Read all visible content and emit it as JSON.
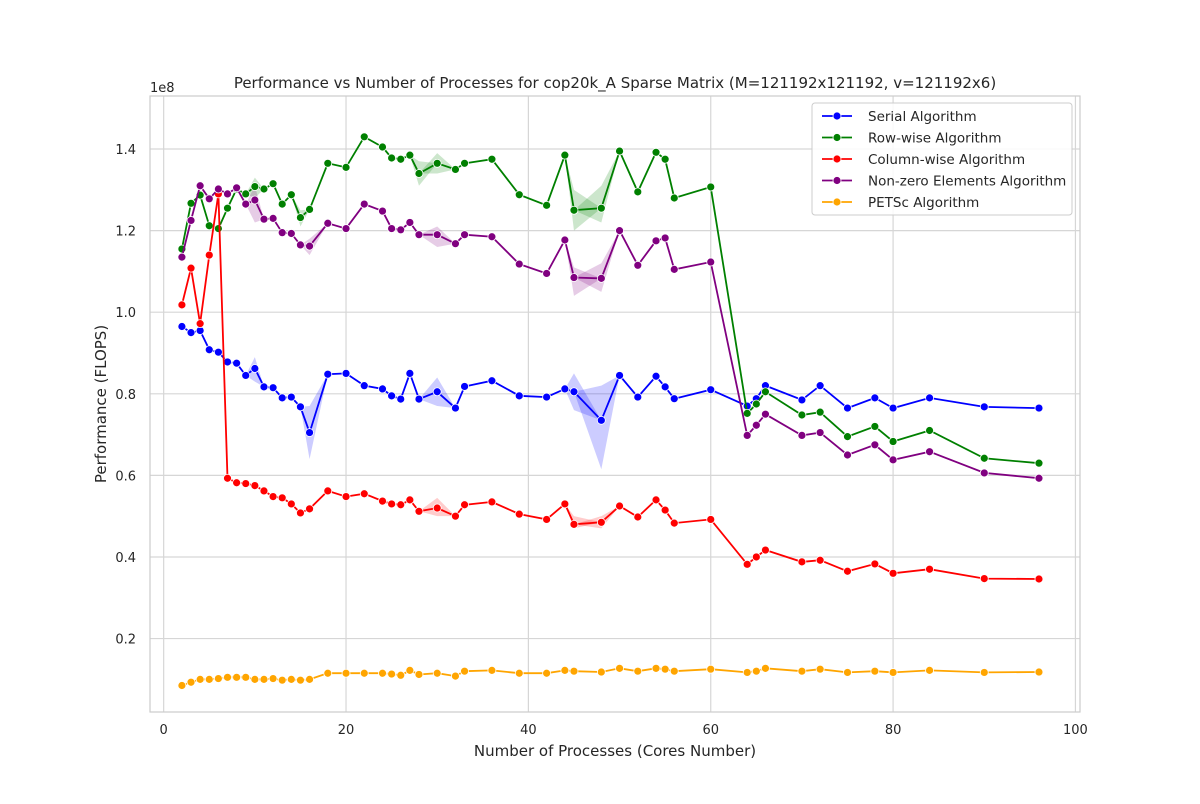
{
  "chart_data": {
    "type": "line",
    "title": "Performance vs Number of Processes for cop20k_A Sparse Matrix (M=121192x121192, v=121192x6)",
    "xlabel": "Number of Processes (Cores Number)",
    "ylabel": "Performance (FLOPS)",
    "y_multiplier_label": "1e8",
    "xlim": [
      -1.5,
      100.5
    ],
    "ylim": [
      0.02,
      1.53
    ],
    "x_ticks": [
      0,
      20,
      40,
      60,
      80,
      100
    ],
    "x_tick_labels": [
      "0",
      "20",
      "40",
      "60",
      "80",
      "100"
    ],
    "y_ticks": [
      0.2,
      0.4,
      0.6,
      0.8,
      1.0,
      1.2,
      1.4
    ],
    "y_tick_labels": [
      "0.2",
      "0.4",
      "0.6",
      "0.8",
      "1.0",
      "1.2",
      "1.4"
    ],
    "grid": true,
    "legend_position": "top-right",
    "x": [
      2,
      3,
      4,
      5,
      6,
      7,
      8,
      9,
      10,
      11,
      12,
      13,
      14,
      15,
      16,
      18,
      20,
      22,
      24,
      25,
      26,
      27,
      28,
      30,
      32,
      33,
      36,
      39,
      42,
      44,
      45,
      48,
      50,
      52,
      54,
      55,
      56,
      60,
      64,
      65,
      66,
      70,
      72,
      75,
      78,
      80,
      84,
      90,
      96
    ],
    "series": [
      {
        "name": "Serial Algorithm",
        "color": "#0000ff",
        "values": [
          0.965,
          0.95,
          0.955,
          0.908,
          0.902,
          0.878,
          0.875,
          0.845,
          0.862,
          0.817,
          0.815,
          0.79,
          0.792,
          0.768,
          0.705,
          0.848,
          0.85,
          0.82,
          0.812,
          0.795,
          0.787,
          0.85,
          0.787,
          0.805,
          0.765,
          0.818,
          0.832,
          0.795,
          0.792,
          0.812,
          0.805,
          0.735,
          0.845,
          0.792,
          0.843,
          0.817,
          0.788,
          0.81,
          0.77,
          0.788,
          0.82,
          0.785,
          0.82,
          0.765,
          0.79,
          0.765,
          0.79,
          0.768,
          0.765
        ],
        "band": [
          {
            "x": 10,
            "lo": 0.83,
            "hi": 0.89
          },
          {
            "x": 16,
            "lo": 0.64,
            "hi": 0.77
          },
          {
            "x": 30,
            "lo": 0.77,
            "hi": 0.84
          },
          {
            "x": 45,
            "lo": 0.76,
            "hi": 0.85
          },
          {
            "x": 48,
            "lo": 0.615,
            "hi": 0.82
          }
        ]
      },
      {
        "name": "Row-wise Algorithm",
        "color": "#008000",
        "values": [
          1.155,
          1.267,
          1.287,
          1.212,
          1.205,
          1.255,
          1.302,
          1.29,
          1.308,
          1.302,
          1.315,
          1.265,
          1.288,
          1.232,
          1.252,
          1.365,
          1.355,
          1.43,
          1.405,
          1.378,
          1.375,
          1.385,
          1.34,
          1.365,
          1.35,
          1.365,
          1.375,
          1.288,
          1.262,
          1.385,
          1.25,
          1.255,
          1.395,
          1.295,
          1.392,
          1.375,
          1.28,
          1.307,
          0.752,
          0.775,
          0.805,
          0.748,
          0.755,
          0.695,
          0.72,
          0.683,
          0.71,
          0.642,
          0.63
        ],
        "band": [
          {
            "x": 10,
            "lo": 1.28,
            "hi": 1.33
          },
          {
            "x": 15,
            "lo": 1.21,
            "hi": 1.25
          },
          {
            "x": 28,
            "lo": 1.31,
            "hi": 1.37
          },
          {
            "x": 30,
            "lo": 1.34,
            "hi": 1.39
          },
          {
            "x": 45,
            "lo": 1.2,
            "hi": 1.3
          },
          {
            "x": 48,
            "lo": 1.22,
            "hi": 1.31
          }
        ]
      },
      {
        "name": "Column-wise Algorithm",
        "color": "#ff0000",
        "values": [
          1.018,
          1.108,
          0.972,
          1.14,
          1.29,
          0.593,
          0.582,
          0.58,
          0.575,
          0.562,
          0.548,
          0.545,
          0.53,
          0.508,
          0.518,
          0.562,
          0.548,
          0.555,
          0.537,
          0.53,
          0.528,
          0.54,
          0.512,
          0.52,
          0.5,
          0.528,
          0.535,
          0.505,
          0.492,
          0.53,
          0.48,
          0.485,
          0.525,
          0.498,
          0.54,
          0.515,
          0.483,
          0.492,
          0.382,
          0.4,
          0.417,
          0.388,
          0.392,
          0.365,
          0.383,
          0.36,
          0.37,
          0.347,
          0.346
        ],
        "band": [
          {
            "x": 30,
            "lo": 0.5,
            "hi": 0.545
          },
          {
            "x": 45,
            "lo": 0.47,
            "hi": 0.5
          },
          {
            "x": 48,
            "lo": 0.47,
            "hi": 0.5
          }
        ]
      },
      {
        "name": "Non-zero Elements Algorithm",
        "color": "#800080",
        "values": [
          1.135,
          1.225,
          1.31,
          1.278,
          1.302,
          1.29,
          1.305,
          1.265,
          1.275,
          1.228,
          1.23,
          1.195,
          1.193,
          1.165,
          1.162,
          1.218,
          1.205,
          1.265,
          1.248,
          1.205,
          1.202,
          1.22,
          1.19,
          1.19,
          1.168,
          1.19,
          1.185,
          1.118,
          1.095,
          1.177,
          1.085,
          1.083,
          1.2,
          1.115,
          1.175,
          1.182,
          1.105,
          1.123,
          0.698,
          0.723,
          0.75,
          0.698,
          0.705,
          0.65,
          0.675,
          0.638,
          0.658,
          0.606,
          0.593
        ],
        "band": [
          {
            "x": 10,
            "lo": 1.22,
            "hi": 1.31
          },
          {
            "x": 16,
            "lo": 1.14,
            "hi": 1.18
          },
          {
            "x": 30,
            "lo": 1.16,
            "hi": 1.21
          },
          {
            "x": 45,
            "lo": 1.04,
            "hi": 1.11
          },
          {
            "x": 48,
            "lo": 1.05,
            "hi": 1.12
          }
        ]
      },
      {
        "name": "PETSc Algorithm",
        "color": "#ffa500",
        "values": [
          0.085,
          0.093,
          0.1,
          0.1,
          0.102,
          0.105,
          0.105,
          0.105,
          0.1,
          0.1,
          0.102,
          0.098,
          0.1,
          0.098,
          0.1,
          0.115,
          0.115,
          0.115,
          0.115,
          0.113,
          0.11,
          0.122,
          0.112,
          0.115,
          0.108,
          0.12,
          0.122,
          0.115,
          0.115,
          0.122,
          0.12,
          0.118,
          0.127,
          0.12,
          0.127,
          0.125,
          0.12,
          0.125,
          0.117,
          0.12,
          0.127,
          0.12,
          0.125,
          0.117,
          0.12,
          0.117,
          0.122,
          0.117,
          0.118
        ],
        "band": []
      }
    ]
  }
}
